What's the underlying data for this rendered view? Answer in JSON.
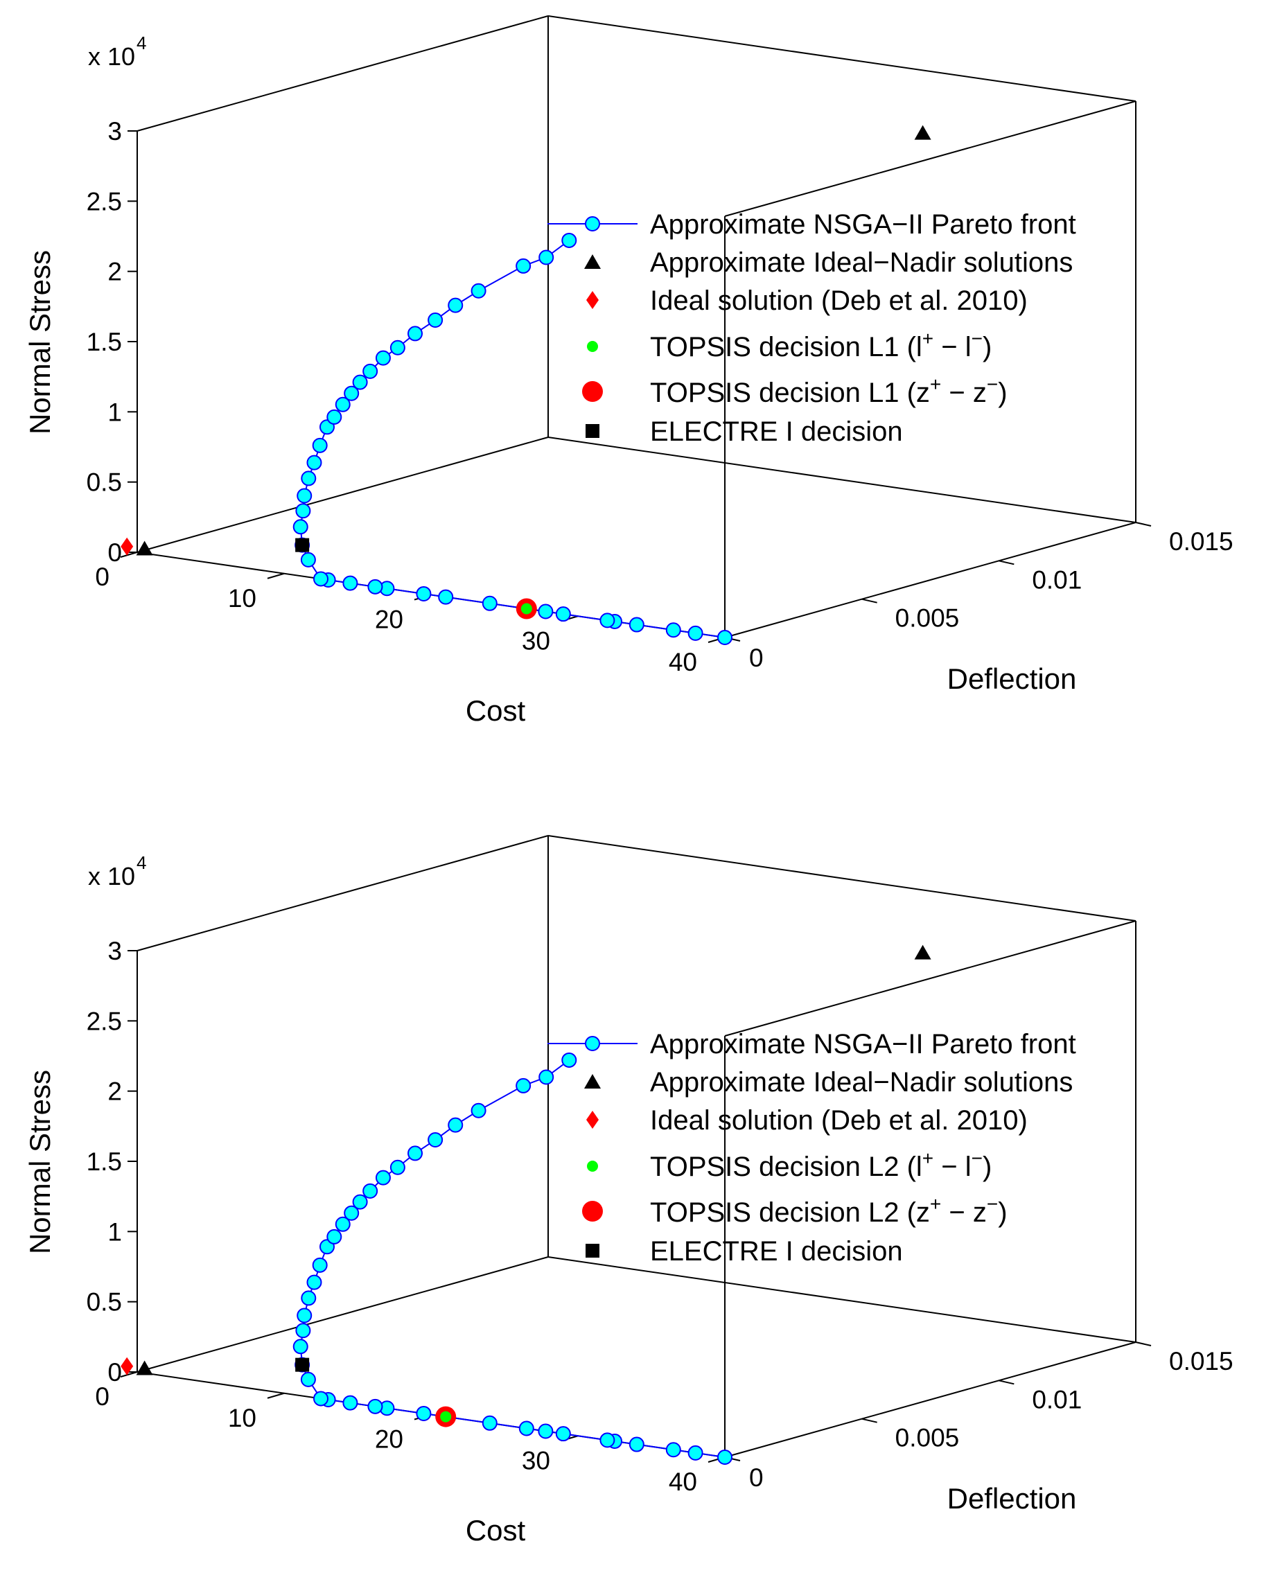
{
  "colors": {
    "front_line": "#0000ff",
    "front_marker": "#00ffff",
    "ideal_nadir": "#000000",
    "ideal_deb": "#ff0000",
    "topsis_l": "#00ff00",
    "topsis_z": "#ff0000",
    "electre": "#000000"
  },
  "chart_data": [
    {
      "type": "scatter3d",
      "xlabel": "Cost",
      "ylabel": "Deflection",
      "zlabel": "Normal Stress",
      "z_multiplier": "x 10",
      "z_exponent": "4",
      "xlim": [
        0,
        40
      ],
      "ylim": [
        0,
        0.015
      ],
      "zlim": [
        0,
        30000
      ],
      "x_ticks": [
        "0",
        "10",
        "20",
        "30",
        "40"
      ],
      "y_ticks": [
        "0",
        "0.005",
        "0.01",
        "0.015"
      ],
      "z_ticks": [
        "0",
        "0.5",
        "1",
        "1.5",
        "2",
        "2.5",
        "3"
      ],
      "legend": {
        "front": "Approximate NSGA−II Pareto front",
        "ideal_nadir": "Approximate Ideal−Nadir solutions",
        "ideal_deb": "Ideal solution (Deb et al. 2010)",
        "topsis_l_main": "TOPSIS decision L1 (l",
        "topsis_l_end": ")",
        "topsis_z_main": "TOPSIS decision L1 (z",
        "topsis_z_end": ")",
        "electre": "ELECTRE I decision",
        "plus": "+",
        "minus_sep": " − ",
        "minus": "−",
        "l_letter": "l",
        "z_letter": "z"
      },
      "series": [
        {
          "name": "Approximate NSGA-II Pareto front",
          "marker": "circle",
          "points": [
            [
              40,
              0,
              0
            ],
            [
              38,
              0,
              0
            ],
            [
              36.5,
              0,
              0
            ],
            [
              34,
              0,
              0
            ],
            [
              32.5,
              0,
              0
            ],
            [
              32,
              0,
              0
            ],
            [
              29,
              0,
              0
            ],
            [
              27.8,
              0,
              0
            ],
            [
              26.5,
              0,
              0
            ],
            [
              24,
              0,
              0
            ],
            [
              21,
              0,
              0
            ],
            [
              19.5,
              0,
              0
            ],
            [
              17,
              0,
              0
            ],
            [
              16.2,
              0,
              0
            ],
            [
              14.5,
              0,
              0
            ],
            [
              13,
              0,
              0
            ],
            [
              12.5,
              0,
              0
            ],
            [
              10.9,
              0.0004,
              900
            ],
            [
              10.3,
              0.0005,
              1800
            ],
            [
              10.0,
              0.0006,
              3000
            ],
            [
              9.8,
              0.0008,
              4000
            ],
            [
              9.7,
              0.0009,
              5000
            ],
            [
              9.8,
              0.001,
              6200
            ],
            [
              10.0,
              0.0011,
              7300
            ],
            [
              10.2,
              0.0012,
              8500
            ],
            [
              10.5,
              0.0013,
              9800
            ],
            [
              10.8,
              0.0014,
              10500
            ],
            [
              11.2,
              0.0015,
              11400
            ],
            [
              11.6,
              0.0016,
              12200
            ],
            [
              12.0,
              0.0017,
              13000
            ],
            [
              12.5,
              0.0018,
              13800
            ],
            [
              13.2,
              0.0019,
              14800
            ],
            [
              14.0,
              0.002,
              15600
            ],
            [
              15.0,
              0.0021,
              16700
            ],
            [
              16.0,
              0.0023,
              17700
            ],
            [
              17.0,
              0.0025,
              18800
            ],
            [
              18.2,
              0.0027,
              19900
            ],
            [
              20.5,
              0.0031,
              21800
            ],
            [
              21.5,
              0.0034,
              22400
            ],
            [
              22.5,
              0.0037,
              23600
            ]
          ]
        },
        {
          "name": "Approximate Ideal-Nadir solutions",
          "marker": "triangle",
          "points": [
            [
              0.5,
              0,
              300
            ],
            [
              25.5,
              0.015,
              25500
            ]
          ]
        },
        {
          "name": "Ideal solution (Deb et al. 2010)",
          "marker": "diamond",
          "points": [
            [
              -0.7,
              0,
              300
            ]
          ]
        },
        {
          "name": "TOPSIS decision L1 (l+ - l-)",
          "marker": "small-circle",
          "points": [
            [
              26.5,
              0,
              0
            ]
          ]
        },
        {
          "name": "TOPSIS decision L1 (z+ - z-)",
          "marker": "big-circle",
          "points": [
            [
              26.5,
              0,
              0
            ]
          ]
        },
        {
          "name": "ELECTRE I decision",
          "marker": "square",
          "points": [
            [
              10.3,
              0.0005,
              1800
            ]
          ]
        }
      ]
    },
    {
      "type": "scatter3d",
      "xlabel": "Cost",
      "ylabel": "Deflection",
      "zlabel": "Normal Stress",
      "z_multiplier": "x 10",
      "z_exponent": "4",
      "xlim": [
        0,
        40
      ],
      "ylim": [
        0,
        0.015
      ],
      "zlim": [
        0,
        30000
      ],
      "x_ticks": [
        "0",
        "10",
        "20",
        "30",
        "40"
      ],
      "y_ticks": [
        "0",
        "0.005",
        "0.01",
        "0.015"
      ],
      "z_ticks": [
        "0",
        "0.5",
        "1",
        "1.5",
        "2",
        "2.5",
        "3"
      ],
      "legend": {
        "front": "Approximate NSGA−II Pareto front",
        "ideal_nadir": "Approximate Ideal−Nadir solutions",
        "ideal_deb": "Ideal solution (Deb et al. 2010)",
        "topsis_l_main": "TOPSIS decision L2 (l",
        "topsis_l_end": ")",
        "topsis_z_main": "TOPSIS decision L2 (z",
        "topsis_z_end": ")",
        "electre": "ELECTRE I decision",
        "plus": "+",
        "minus_sep": " − ",
        "minus": "−",
        "l_letter": "l",
        "z_letter": "z"
      },
      "series": [
        {
          "name": "Approximate NSGA-II Pareto front",
          "marker": "circle",
          "points": [
            [
              40,
              0,
              0
            ],
            [
              38,
              0,
              0
            ],
            [
              36.5,
              0,
              0
            ],
            [
              34,
              0,
              0
            ],
            [
              32.5,
              0,
              0
            ],
            [
              32,
              0,
              0
            ],
            [
              29,
              0,
              0
            ],
            [
              27.8,
              0,
              0
            ],
            [
              26.5,
              0,
              0
            ],
            [
              24,
              0,
              0
            ],
            [
              21,
              0,
              0
            ],
            [
              19.5,
              0,
              0
            ],
            [
              17,
              0,
              0
            ],
            [
              16.2,
              0,
              0
            ],
            [
              14.5,
              0,
              0
            ],
            [
              13,
              0,
              0
            ],
            [
              12.5,
              0,
              0
            ],
            [
              10.9,
              0.0004,
              900
            ],
            [
              10.3,
              0.0005,
              1800
            ],
            [
              10.0,
              0.0006,
              3000
            ],
            [
              9.8,
              0.0008,
              4000
            ],
            [
              9.7,
              0.0009,
              5000
            ],
            [
              9.8,
              0.001,
              6200
            ],
            [
              10.0,
              0.0011,
              7300
            ],
            [
              10.2,
              0.0012,
              8500
            ],
            [
              10.5,
              0.0013,
              9800
            ],
            [
              10.8,
              0.0014,
              10500
            ],
            [
              11.2,
              0.0015,
              11400
            ],
            [
              11.6,
              0.0016,
              12200
            ],
            [
              12.0,
              0.0017,
              13000
            ],
            [
              12.5,
              0.0018,
              13800
            ],
            [
              13.2,
              0.0019,
              14800
            ],
            [
              14.0,
              0.002,
              15600
            ],
            [
              15.0,
              0.0021,
              16700
            ],
            [
              16.0,
              0.0023,
              17700
            ],
            [
              17.0,
              0.0025,
              18800
            ],
            [
              18.2,
              0.0027,
              19900
            ],
            [
              20.5,
              0.0031,
              21800
            ],
            [
              21.5,
              0.0034,
              22400
            ],
            [
              22.5,
              0.0037,
              23600
            ]
          ]
        },
        {
          "name": "Approximate Ideal-Nadir solutions",
          "marker": "triangle",
          "points": [
            [
              0.5,
              0,
              300
            ],
            [
              25.5,
              0.015,
              25500
            ]
          ]
        },
        {
          "name": "Ideal solution (Deb et al. 2010)",
          "marker": "diamond",
          "points": [
            [
              -0.7,
              0,
              300
            ]
          ]
        },
        {
          "name": "TOPSIS decision L2 (l+ - l-)",
          "marker": "small-circle",
          "points": [
            [
              21,
              0,
              0
            ]
          ]
        },
        {
          "name": "TOPSIS decision L2 (z+ - z-)",
          "marker": "big-circle",
          "points": [
            [
              21,
              0,
              0
            ]
          ]
        },
        {
          "name": "ELECTRE I decision",
          "marker": "square",
          "points": [
            [
              10.3,
              0.0005,
              1800
            ]
          ]
        }
      ]
    }
  ]
}
